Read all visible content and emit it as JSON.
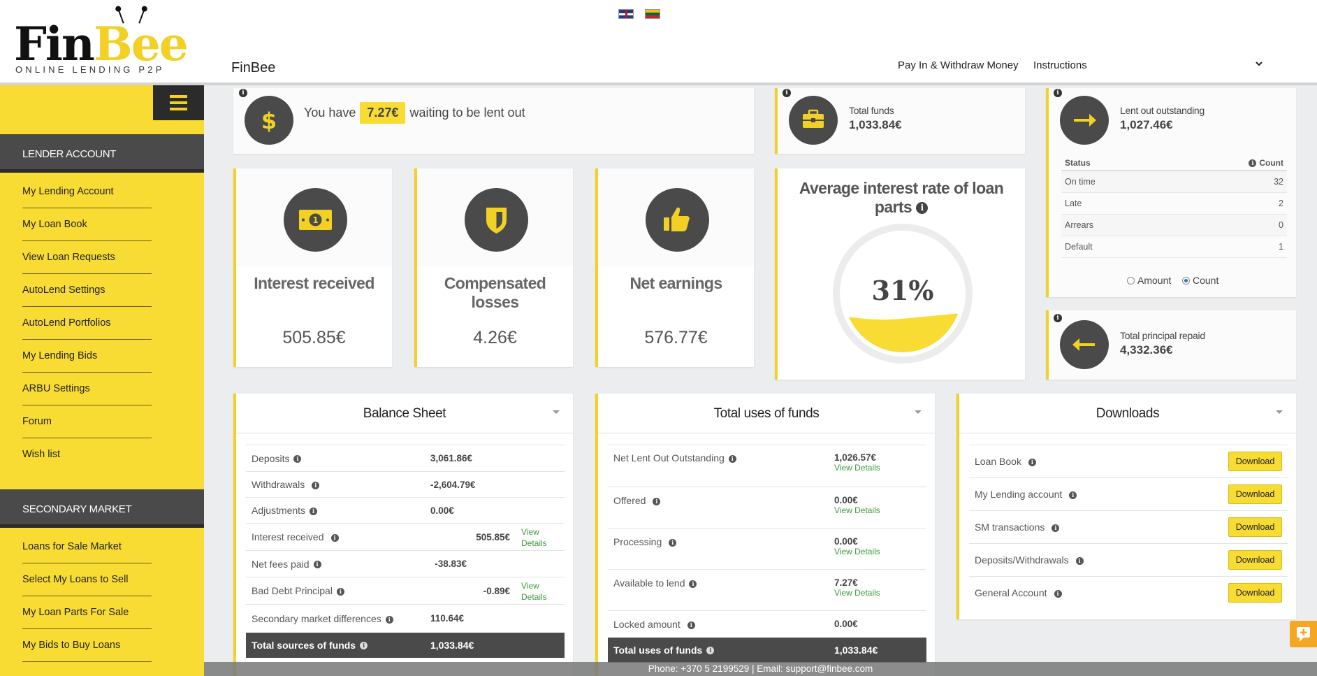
{
  "header": {
    "logo_fin": "Fin",
    "logo_bee": "Bee",
    "logo_tagline": "ONLINE LENDING P2P",
    "brand": "FinBee",
    "nav": {
      "pay_in_withdraw": "Pay In & Withdraw Money",
      "instructions": "Instructions"
    }
  },
  "sidebar": {
    "section1_title": "LENDER ACCOUNT",
    "section1_items": [
      {
        "label": "My Lending Account"
      },
      {
        "label": "My Loan Book"
      },
      {
        "label": "View Loan Requests"
      },
      {
        "label": "AutoLend Settings"
      },
      {
        "label": "AutoLend Portfolios"
      },
      {
        "label": "My Lending Bids"
      },
      {
        "label": "ARBU Settings"
      },
      {
        "label": "Forum"
      },
      {
        "label": "Wish list"
      }
    ],
    "section2_title": "SECONDARY MARKET",
    "section2_items": [
      {
        "label": "Loans for Sale Market"
      },
      {
        "label": "Select My Loans to Sell"
      },
      {
        "label": "My Loan Parts For Sale"
      },
      {
        "label": "My Bids to Buy Loans"
      }
    ]
  },
  "waiting": {
    "prefix": "You have",
    "amount": "7.27€",
    "suffix": "waiting to be lent out"
  },
  "total_funds": {
    "label": "Total funds",
    "value": "1,033.84€"
  },
  "lent_out": {
    "label": "Lent out outstanding",
    "value": "1,027.46€"
  },
  "status_table": {
    "col_status": "Status",
    "col_count": "Count",
    "rows": [
      {
        "status": "On time",
        "count": "32"
      },
      {
        "status": "Late",
        "count": "2"
      },
      {
        "status": "Arrears",
        "count": "0"
      },
      {
        "status": "Default",
        "count": "1"
      }
    ],
    "radio_amount": "Amount",
    "radio_count": "Count",
    "selected": "Count"
  },
  "principal_repaid": {
    "label": "Total principal repaid",
    "value": "4,332.36€"
  },
  "stats": {
    "interest_received": {
      "title": "Interest received",
      "value": "505.85€"
    },
    "compensated_losses": {
      "title_line1": "Compensated",
      "title_line2": "losses",
      "value": "4.26€"
    },
    "net_earnings": {
      "title": "Net earnings",
      "value": "576.77€"
    }
  },
  "avg_rate": {
    "title_line1": "Average interest rate of loan",
    "title_line2": "parts",
    "value": "31%",
    "fill_fraction": 0.31
  },
  "balance_sheet": {
    "title": "Balance Sheet",
    "rows": [
      {
        "label": "Deposits",
        "value": "3,061.86€"
      },
      {
        "label": "Withdrawals",
        "value": "-2,604.79€"
      },
      {
        "label": "Adjustments",
        "value": "0.00€"
      },
      {
        "label": "Interest received",
        "value": "505.85€",
        "link": "View Details"
      },
      {
        "label": "Net fees paid",
        "value": "-38.83€"
      },
      {
        "label": "Bad Debt Principal",
        "value": "-0.89€",
        "link": "View Details"
      },
      {
        "label": "Secondary market differences",
        "value": "110.64€"
      }
    ],
    "total_label": "Total sources of funds",
    "total_value": "1,033.84€"
  },
  "uses_of_funds": {
    "title": "Total uses of funds",
    "rows": [
      {
        "label": "Net Lent Out Outstanding",
        "value": "1,026.57€",
        "link": "View Details"
      },
      {
        "label": "Offered",
        "value": "0.00€",
        "link": "View Details"
      },
      {
        "label": "Processing",
        "value": "0.00€",
        "link": "View Details"
      },
      {
        "label": "Available to lend",
        "value": "7.27€",
        "link": "View Details"
      },
      {
        "label": "Locked amount",
        "value": "0.00€"
      }
    ],
    "total_label": "Total uses of funds",
    "total_value": "1,033.84€"
  },
  "downloads": {
    "title": "Downloads",
    "button_label": "Download",
    "rows": [
      {
        "label": "Loan Book"
      },
      {
        "label": "My Lending account"
      },
      {
        "label": "SM transactions"
      },
      {
        "label": "Deposits/Withdrawals"
      },
      {
        "label": "General Account"
      }
    ]
  },
  "footer": {
    "text": "Phone: +370 5 2199529 | Email: support@finbee.com"
  },
  "colors": {
    "accent": "#f8dc34",
    "dark": "#4a4a4a",
    "link_green": "#3b9b3b"
  }
}
